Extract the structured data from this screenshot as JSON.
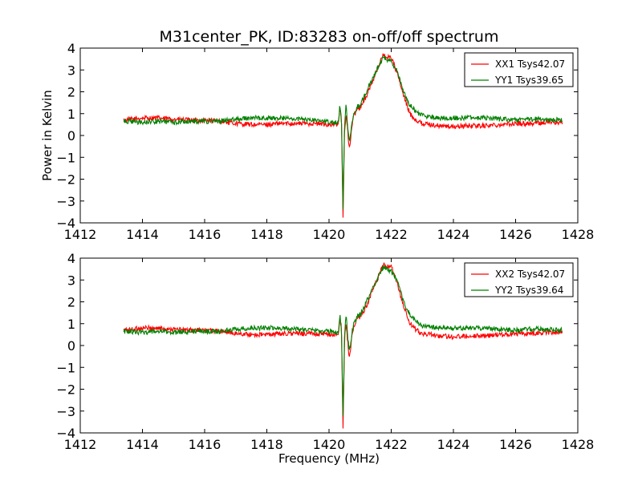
{
  "chart_data": [
    {
      "type": "line",
      "title": "M31center_PK, ID:83283 on-off/off spectrum",
      "xlabel": "",
      "ylabel": "Power in Kelvin",
      "xlim": [
        1412,
        1428
      ],
      "ylim": [
        -4,
        4
      ],
      "xticks": [
        "1412",
        "1414",
        "1416",
        "1418",
        "1420",
        "1422",
        "1424",
        "1426",
        "1428"
      ],
      "yticks": [
        "4",
        "3",
        "2",
        "1",
        "0",
        "−1",
        "−2",
        "−3",
        "−4"
      ],
      "grid": false,
      "legend_position": "top-right",
      "series": [
        {
          "name": "XX1 Tsys42.07",
          "color": "#ff0000",
          "x": [
            1413.4,
            1414.0,
            1414.5,
            1415.0,
            1415.5,
            1416.0,
            1416.5,
            1417.0,
            1417.5,
            1418.0,
            1418.5,
            1419.0,
            1419.5,
            1420.0,
            1420.3,
            1420.35,
            1420.4,
            1420.45,
            1420.5,
            1420.55,
            1420.6,
            1420.65,
            1420.7,
            1420.75,
            1420.8,
            1420.9,
            1421.0,
            1421.2,
            1421.4,
            1421.6,
            1421.75,
            1421.85,
            1422.0,
            1422.2,
            1422.4,
            1422.6,
            1422.8,
            1423.0,
            1423.5,
            1424.0,
            1424.5,
            1425.0,
            1425.5,
            1426.0,
            1426.5,
            1427.0,
            1427.5
          ],
          "y": [
            0.7,
            0.8,
            0.8,
            0.75,
            0.7,
            0.7,
            0.65,
            0.55,
            0.5,
            0.5,
            0.55,
            0.55,
            0.55,
            0.5,
            0.5,
            1.3,
            0.7,
            -3.8,
            0.3,
            1.0,
            0.2,
            -0.6,
            -0.1,
            0.6,
            0.9,
            1.2,
            1.3,
            1.8,
            2.5,
            3.2,
            3.7,
            3.6,
            3.6,
            2.8,
            1.8,
            1.0,
            0.7,
            0.55,
            0.45,
            0.4,
            0.45,
            0.45,
            0.5,
            0.55,
            0.55,
            0.6,
            0.6
          ]
        },
        {
          "name": "YY1 Tsys39.65",
          "color": "#008000",
          "x": [
            1413.4,
            1414.0,
            1414.5,
            1415.0,
            1415.5,
            1416.0,
            1416.5,
            1417.0,
            1417.5,
            1418.0,
            1418.5,
            1419.0,
            1419.5,
            1420.0,
            1420.3,
            1420.35,
            1420.4,
            1420.45,
            1420.5,
            1420.55,
            1420.6,
            1420.65,
            1420.7,
            1420.75,
            1420.8,
            1420.9,
            1421.0,
            1421.2,
            1421.4,
            1421.6,
            1421.75,
            1421.85,
            1422.0,
            1422.2,
            1422.4,
            1422.6,
            1422.8,
            1423.0,
            1423.5,
            1424.0,
            1424.5,
            1425.0,
            1425.5,
            1426.0,
            1426.5,
            1427.0,
            1427.5
          ],
          "y": [
            0.65,
            0.6,
            0.65,
            0.6,
            0.65,
            0.65,
            0.65,
            0.75,
            0.8,
            0.8,
            0.8,
            0.75,
            0.7,
            0.65,
            0.6,
            1.4,
            0.8,
            -3.3,
            0.5,
            1.5,
            0.4,
            -0.3,
            0.1,
            0.7,
            1.0,
            1.3,
            1.4,
            2.0,
            2.6,
            3.2,
            3.6,
            3.5,
            3.4,
            2.9,
            2.0,
            1.4,
            1.1,
            0.9,
            0.8,
            0.8,
            0.8,
            0.8,
            0.75,
            0.7,
            0.75,
            0.75,
            0.7
          ]
        }
      ]
    },
    {
      "type": "line",
      "title": "",
      "xlabel": "Frequency (MHz)",
      "ylabel": "",
      "xlim": [
        1412,
        1428
      ],
      "ylim": [
        -4,
        4
      ],
      "xticks": [
        "1412",
        "1414",
        "1416",
        "1418",
        "1420",
        "1422",
        "1424",
        "1426",
        "1428"
      ],
      "yticks": [
        "4",
        "3",
        "2",
        "1",
        "0",
        "−1",
        "−2",
        "−3",
        "−4"
      ],
      "grid": false,
      "legend_position": "top-right",
      "series": [
        {
          "name": "XX2 Tsys42.07",
          "color": "#ff0000",
          "x": [
            1413.4,
            1414.0,
            1414.5,
            1415.0,
            1415.5,
            1416.0,
            1416.5,
            1417.0,
            1417.5,
            1418.0,
            1418.5,
            1419.0,
            1419.5,
            1420.0,
            1420.3,
            1420.35,
            1420.4,
            1420.45,
            1420.5,
            1420.55,
            1420.6,
            1420.65,
            1420.7,
            1420.75,
            1420.8,
            1420.9,
            1421.0,
            1421.2,
            1421.4,
            1421.6,
            1421.75,
            1421.85,
            1422.0,
            1422.2,
            1422.4,
            1422.6,
            1422.8,
            1423.0,
            1423.5,
            1424.0,
            1424.5,
            1425.0,
            1425.5,
            1426.0,
            1426.5,
            1427.0,
            1427.5
          ],
          "y": [
            0.7,
            0.8,
            0.8,
            0.75,
            0.7,
            0.7,
            0.65,
            0.55,
            0.5,
            0.5,
            0.55,
            0.55,
            0.55,
            0.5,
            0.5,
            1.3,
            0.7,
            -3.8,
            0.3,
            1.0,
            0.2,
            -0.6,
            -0.1,
            0.6,
            0.9,
            1.2,
            1.3,
            1.8,
            2.5,
            3.2,
            3.7,
            3.6,
            3.6,
            2.8,
            1.8,
            1.0,
            0.7,
            0.55,
            0.45,
            0.4,
            0.45,
            0.45,
            0.5,
            0.55,
            0.55,
            0.6,
            0.6
          ]
        },
        {
          "name": "YY2 Tsys39.64",
          "color": "#008000",
          "x": [
            1413.4,
            1414.0,
            1414.5,
            1415.0,
            1415.5,
            1416.0,
            1416.5,
            1417.0,
            1417.5,
            1418.0,
            1418.5,
            1419.0,
            1419.5,
            1420.0,
            1420.3,
            1420.35,
            1420.4,
            1420.45,
            1420.5,
            1420.55,
            1420.6,
            1420.65,
            1420.7,
            1420.75,
            1420.8,
            1420.9,
            1421.0,
            1421.2,
            1421.4,
            1421.6,
            1421.75,
            1421.85,
            1422.0,
            1422.2,
            1422.4,
            1422.6,
            1422.8,
            1423.0,
            1423.5,
            1424.0,
            1424.5,
            1425.0,
            1425.5,
            1426.0,
            1426.5,
            1427.0,
            1427.5
          ],
          "y": [
            0.65,
            0.6,
            0.65,
            0.6,
            0.65,
            0.65,
            0.65,
            0.75,
            0.8,
            0.8,
            0.8,
            0.75,
            0.7,
            0.65,
            0.6,
            1.4,
            0.8,
            -3.3,
            0.5,
            1.5,
            0.4,
            -0.3,
            0.1,
            0.7,
            1.0,
            1.3,
            1.4,
            2.0,
            2.6,
            3.2,
            3.6,
            3.5,
            3.4,
            2.9,
            2.0,
            1.4,
            1.1,
            0.9,
            0.8,
            0.8,
            0.8,
            0.8,
            0.75,
            0.7,
            0.75,
            0.75,
            0.7
          ]
        }
      ]
    }
  ]
}
